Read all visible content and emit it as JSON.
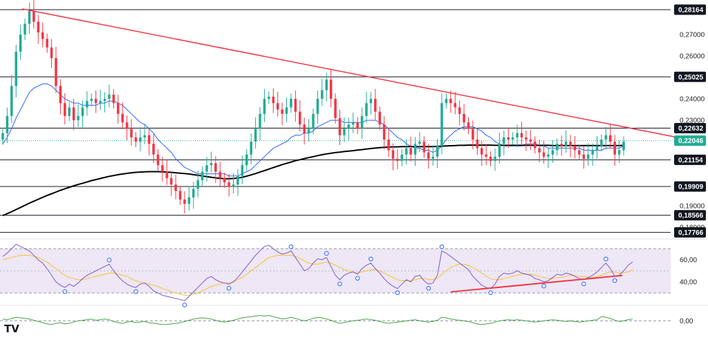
{
  "chart_data": {
    "type": "candlestick",
    "price_axis": {
      "ticks": [
        "0,27000",
        "0,26000",
        "0,24000",
        "0,23000",
        "0,19000",
        "0,18000"
      ],
      "ylim": [
        0.1765,
        0.2855
      ]
    },
    "levels": [
      {
        "value": 0.28164,
        "label": "0,28164"
      },
      {
        "value": 0.25025,
        "label": "0,25025"
      },
      {
        "value": 0.22632,
        "label": "0,22632"
      },
      {
        "value": 0.21154,
        "label": "0,21154"
      },
      {
        "value": 0.19909,
        "label": "0,19909"
      },
      {
        "value": 0.18566,
        "label": "0,18566"
      },
      {
        "value": 0.17766,
        "label": "0,17766"
      }
    ],
    "current_price": {
      "value": 0.22046,
      "label": "0,22046",
      "color": "#22ab94"
    },
    "colors": {
      "up": "#22ab94",
      "down": "#f23645",
      "level_line": "#131722",
      "trendline": "#f23645",
      "ma_fast": "#2962ff",
      "ma_slow": "#000000",
      "rsi_line": "#7e57c2",
      "rsi_ma": "#fbc02d",
      "rsi_band": "#ede7f6",
      "momentum": "#43a047"
    },
    "closes": [
      0.224,
      0.232,
      0.246,
      0.262,
      0.27,
      0.275,
      0.281,
      0.276,
      0.271,
      0.268,
      0.264,
      0.259,
      0.246,
      0.238,
      0.232,
      0.236,
      0.23,
      0.232,
      0.236,
      0.239,
      0.24,
      0.238,
      0.239,
      0.24,
      0.242,
      0.238,
      0.233,
      0.229,
      0.226,
      0.222,
      0.22,
      0.222,
      0.223,
      0.219,
      0.214,
      0.209,
      0.206,
      0.203,
      0.2,
      0.197,
      0.193,
      0.191,
      0.194,
      0.198,
      0.202,
      0.206,
      0.209,
      0.21,
      0.206,
      0.203,
      0.201,
      0.199,
      0.2,
      0.204,
      0.209,
      0.214,
      0.22,
      0.226,
      0.233,
      0.24,
      0.241,
      0.238,
      0.235,
      0.233,
      0.236,
      0.24,
      0.234,
      0.228,
      0.224,
      0.226,
      0.233,
      0.24,
      0.244,
      0.249,
      0.24,
      0.231,
      0.223,
      0.226,
      0.228,
      0.229,
      0.226,
      0.232,
      0.238,
      0.24,
      0.234,
      0.228,
      0.221,
      0.216,
      0.212,
      0.211,
      0.214,
      0.217,
      0.214,
      0.219,
      0.22,
      0.215,
      0.212,
      0.213,
      0.218,
      0.238,
      0.24,
      0.238,
      0.236,
      0.233,
      0.229,
      0.226,
      0.221,
      0.217,
      0.214,
      0.213,
      0.211,
      0.213,
      0.219,
      0.222,
      0.221,
      0.222,
      0.224,
      0.222,
      0.221,
      0.22,
      0.217,
      0.215,
      0.213,
      0.214,
      0.216,
      0.219,
      0.218,
      0.22,
      0.218,
      0.216,
      0.214,
      0.212,
      0.214,
      0.216,
      0.218,
      0.221,
      0.223,
      0.22,
      0.214,
      0.216,
      0.22
    ],
    "ma_fast": [
      0.219,
      0.222,
      0.226,
      0.231,
      0.235,
      0.239,
      0.243,
      0.245,
      0.246,
      0.247,
      0.247,
      0.246,
      0.244,
      0.242,
      0.24,
      0.239,
      0.238,
      0.238,
      0.237,
      0.237,
      0.237,
      0.237,
      0.238,
      0.238,
      0.239,
      0.239,
      0.238,
      0.237,
      0.235,
      0.233,
      0.231,
      0.229,
      0.228,
      0.226,
      0.224,
      0.221,
      0.219,
      0.217,
      0.215,
      0.212,
      0.21,
      0.208,
      0.207,
      0.206,
      0.205,
      0.205,
      0.205,
      0.205,
      0.205,
      0.205,
      0.205,
      0.204,
      0.204,
      0.204,
      0.205,
      0.206,
      0.207,
      0.209,
      0.211,
      0.213,
      0.215,
      0.217,
      0.218,
      0.219,
      0.22,
      0.222,
      0.223,
      0.223,
      0.224,
      0.224,
      0.225,
      0.227,
      0.228,
      0.229,
      0.23,
      0.23,
      0.23,
      0.229,
      0.229,
      0.229,
      0.229,
      0.229,
      0.23,
      0.23,
      0.23,
      0.229,
      0.228,
      0.226,
      0.224,
      0.222,
      0.221,
      0.219,
      0.218,
      0.217,
      0.217,
      0.216,
      0.216,
      0.215,
      0.216,
      0.218,
      0.221,
      0.223,
      0.225,
      0.226,
      0.227,
      0.227,
      0.227,
      0.226,
      0.225,
      0.223,
      0.222,
      0.22,
      0.219,
      0.218,
      0.218,
      0.218,
      0.218,
      0.218,
      0.219,
      0.219,
      0.219,
      0.218,
      0.218,
      0.217,
      0.217,
      0.217,
      0.217,
      0.217,
      0.217,
      0.217,
      0.217,
      0.216,
      0.216,
      0.216,
      0.216,
      0.216,
      0.217,
      0.217,
      0.217,
      0.217,
      0.218
    ],
    "ma_slow": [
      0.1855,
      0.1864,
      0.1873,
      0.1883,
      0.1893,
      0.1903,
      0.1913,
      0.1922,
      0.1931,
      0.194,
      0.1949,
      0.1957,
      0.1965,
      0.1973,
      0.198,
      0.1987,
      0.1994,
      0.2,
      0.2006,
      0.2012,
      0.2018,
      0.2023,
      0.2028,
      0.2033,
      0.2038,
      0.2042,
      0.2046,
      0.2049,
      0.2052,
      0.2055,
      0.2057,
      0.2058,
      0.2059,
      0.206,
      0.206,
      0.206,
      0.2059,
      0.2058,
      0.2057,
      0.2055,
      0.2053,
      0.2051,
      0.2049,
      0.2046,
      0.2043,
      0.204,
      0.2037,
      0.2034,
      0.2031,
      0.2029,
      0.2027,
      0.2027,
      0.2028,
      0.203,
      0.2034,
      0.2039,
      0.2045,
      0.2051,
      0.2058,
      0.2065,
      0.2072,
      0.2079,
      0.2086,
      0.2093,
      0.2099,
      0.2105,
      0.2111,
      0.2116,
      0.2121,
      0.2126,
      0.213,
      0.2135,
      0.2139,
      0.2143,
      0.2146,
      0.2149,
      0.2151,
      0.2154,
      0.2156,
      0.2158,
      0.2161,
      0.2163,
      0.2166,
      0.2168,
      0.217,
      0.2172,
      0.2174,
      0.2175,
      0.2176,
      0.2176,
      0.2177,
      0.2177,
      0.2177,
      0.2177,
      0.2177,
      0.2177,
      0.2177,
      0.2177,
      0.2178,
      0.2179,
      0.218,
      0.2181,
      0.2182,
      0.2183,
      0.2183,
      0.2184,
      0.2184,
      0.2184,
      0.2184,
      0.2184,
      0.2184,
      0.2183,
      0.2183,
      0.2183,
      0.2183,
      0.2183,
      0.2183,
      0.2183,
      0.2183,
      0.2183,
      0.2183,
      0.2183,
      0.2183,
      0.2183,
      0.2182,
      0.2182,
      0.2182,
      0.2182,
      0.2182,
      0.2182,
      0.2182,
      0.2182,
      0.2182,
      0.2182,
      0.2182,
      0.2182,
      0.2182,
      0.2182,
      0.2182,
      0.2182,
      0.2183
    ],
    "trendline": [
      [
        0,
        0.282
      ],
      [
        144,
        0.2252
      ]
    ],
    "rsi": {
      "ticks": [
        "60,00",
        "40,00"
      ],
      "ylim": [
        22,
        75
      ],
      "band": [
        30,
        70
      ],
      "mid": 50,
      "values": [
        63,
        66,
        70,
        74,
        72,
        70,
        68,
        64,
        60,
        57,
        52,
        46,
        40,
        37,
        35,
        38,
        36,
        39,
        43,
        46,
        48,
        50,
        52,
        54,
        56,
        50,
        45,
        41,
        38,
        36,
        35,
        38,
        39,
        36,
        32,
        30,
        28,
        27,
        26,
        25,
        24,
        23,
        27,
        31,
        35,
        39,
        43,
        45,
        42,
        40,
        39,
        38,
        40,
        44,
        49,
        54,
        59,
        64,
        68,
        72,
        73,
        70,
        67,
        65,
        66,
        68,
        62,
        56,
        50,
        52,
        57,
        61,
        60,
        62,
        54,
        46,
        42,
        46,
        48,
        49,
        47,
        52,
        55,
        57,
        52,
        48,
        43,
        39,
        36,
        34,
        38,
        42,
        40,
        45,
        46,
        41,
        38,
        39,
        46,
        68,
        66,
        63,
        60,
        57,
        54,
        51,
        45,
        41,
        37,
        35,
        34,
        38,
        45,
        48,
        47,
        48,
        50,
        48,
        47,
        46,
        43,
        42,
        40,
        41,
        44,
        47,
        46,
        48,
        47,
        45,
        43,
        42,
        44,
        46,
        49,
        53,
        57,
        52,
        45,
        46,
        50,
        55,
        58
      ],
      "ma": [
        60,
        61,
        62,
        63,
        64,
        64,
        64,
        63,
        62,
        60,
        58,
        55,
        52,
        49,
        46,
        44,
        43,
        42,
        42,
        43,
        44,
        45,
        46,
        47,
        48,
        48,
        47,
        46,
        45,
        43,
        41,
        40,
        39,
        38,
        37,
        36,
        34,
        33,
        31,
        30,
        29,
        28,
        28,
        29,
        30,
        32,
        34,
        36,
        37,
        38,
        39,
        39,
        40,
        42,
        44,
        47,
        50,
        53,
        56,
        59,
        62,
        63,
        64,
        64,
        64,
        64,
        63,
        61,
        59,
        57,
        56,
        56,
        57,
        58,
        57,
        55,
        53,
        51,
        50,
        49,
        48,
        49,
        50,
        51,
        51,
        50,
        48,
        46,
        44,
        42,
        41,
        41,
        41,
        42,
        43,
        43,
        42,
        42,
        43,
        47,
        50,
        53,
        55,
        56,
        56,
        55,
        53,
        51,
        48,
        45,
        43,
        42,
        42,
        43,
        44,
        45,
        46,
        47,
        47,
        47,
        46,
        45,
        44,
        43,
        43,
        44,
        44,
        45,
        46,
        46,
        45,
        45,
        44,
        44,
        45,
        46,
        48,
        49,
        49,
        48,
        48,
        49,
        51
      ],
      "trendline": [
        [
          101,
          31
        ],
        [
          135,
          44
        ]
      ]
    },
    "momentum": {
      "tick": "0,00",
      "ylim": [
        -20,
        20
      ],
      "values": [
        3,
        2,
        4,
        6,
        5,
        4,
        3,
        1,
        -1,
        -3,
        -5,
        -6,
        -4,
        -3,
        -5,
        -4,
        -2,
        0,
        1,
        2,
        3,
        1,
        2,
        3,
        2,
        -1,
        -3,
        -4,
        -2,
        -1,
        -3,
        -2,
        -1,
        -3,
        -4,
        -5,
        -6,
        -6,
        -5,
        -4,
        -3,
        -1,
        1,
        3,
        4,
        5,
        4,
        3,
        1,
        -1,
        -2,
        -1,
        1,
        3,
        5,
        6,
        7,
        8,
        9,
        8,
        9,
        7,
        5,
        3,
        4,
        6,
        4,
        2,
        0,
        2,
        4,
        6,
        5,
        3,
        1,
        -2,
        -4,
        -3,
        -1,
        0,
        1,
        2,
        3,
        2,
        1,
        -1,
        -3,
        -4,
        -3,
        -2,
        -1,
        0,
        1,
        2,
        0,
        -1,
        -2,
        -1,
        1,
        6,
        5,
        3,
        2,
        1,
        0,
        -1,
        -3,
        -5,
        -6,
        -5,
        -4,
        -2,
        0,
        1,
        2,
        1,
        2,
        1,
        0,
        -1,
        -2,
        -1,
        0,
        1,
        2,
        1,
        0,
        -1,
        0,
        -1,
        -2,
        -1,
        0,
        1,
        2,
        7,
        6,
        4,
        1,
        -1,
        0,
        2,
        3
      ]
    }
  },
  "branding": {
    "logo": "TV"
  }
}
